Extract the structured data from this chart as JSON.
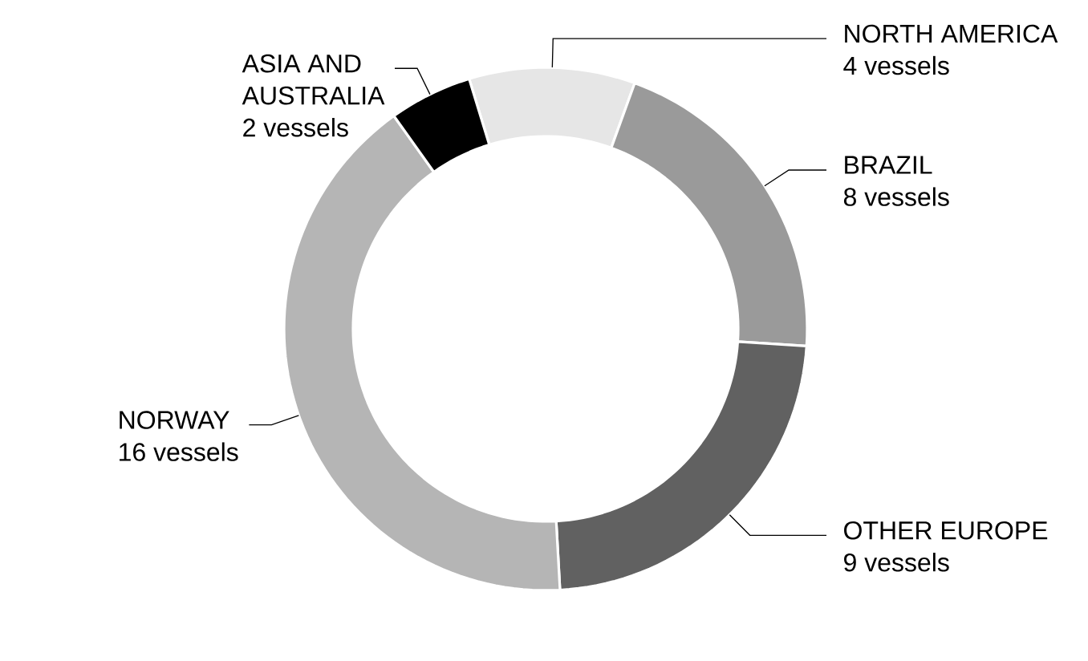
{
  "chart_data": {
    "type": "donut",
    "categories": [
      "NORTH AMERICA",
      "BRAZIL",
      "OTHER EUROPE",
      "NORWAY",
      "ASIA AND AUSTRALIA"
    ],
    "values": [
      4,
      8,
      9,
      16,
      2
    ],
    "colors": [
      "#e6e6e6",
      "#9a9a9a",
      "#616161",
      "#b5b5b5",
      "#000000"
    ],
    "value_labels": [
      "4 vessels",
      "8 vessels",
      "9 vessels",
      "16 vessels",
      "2 vessels"
    ]
  }
}
